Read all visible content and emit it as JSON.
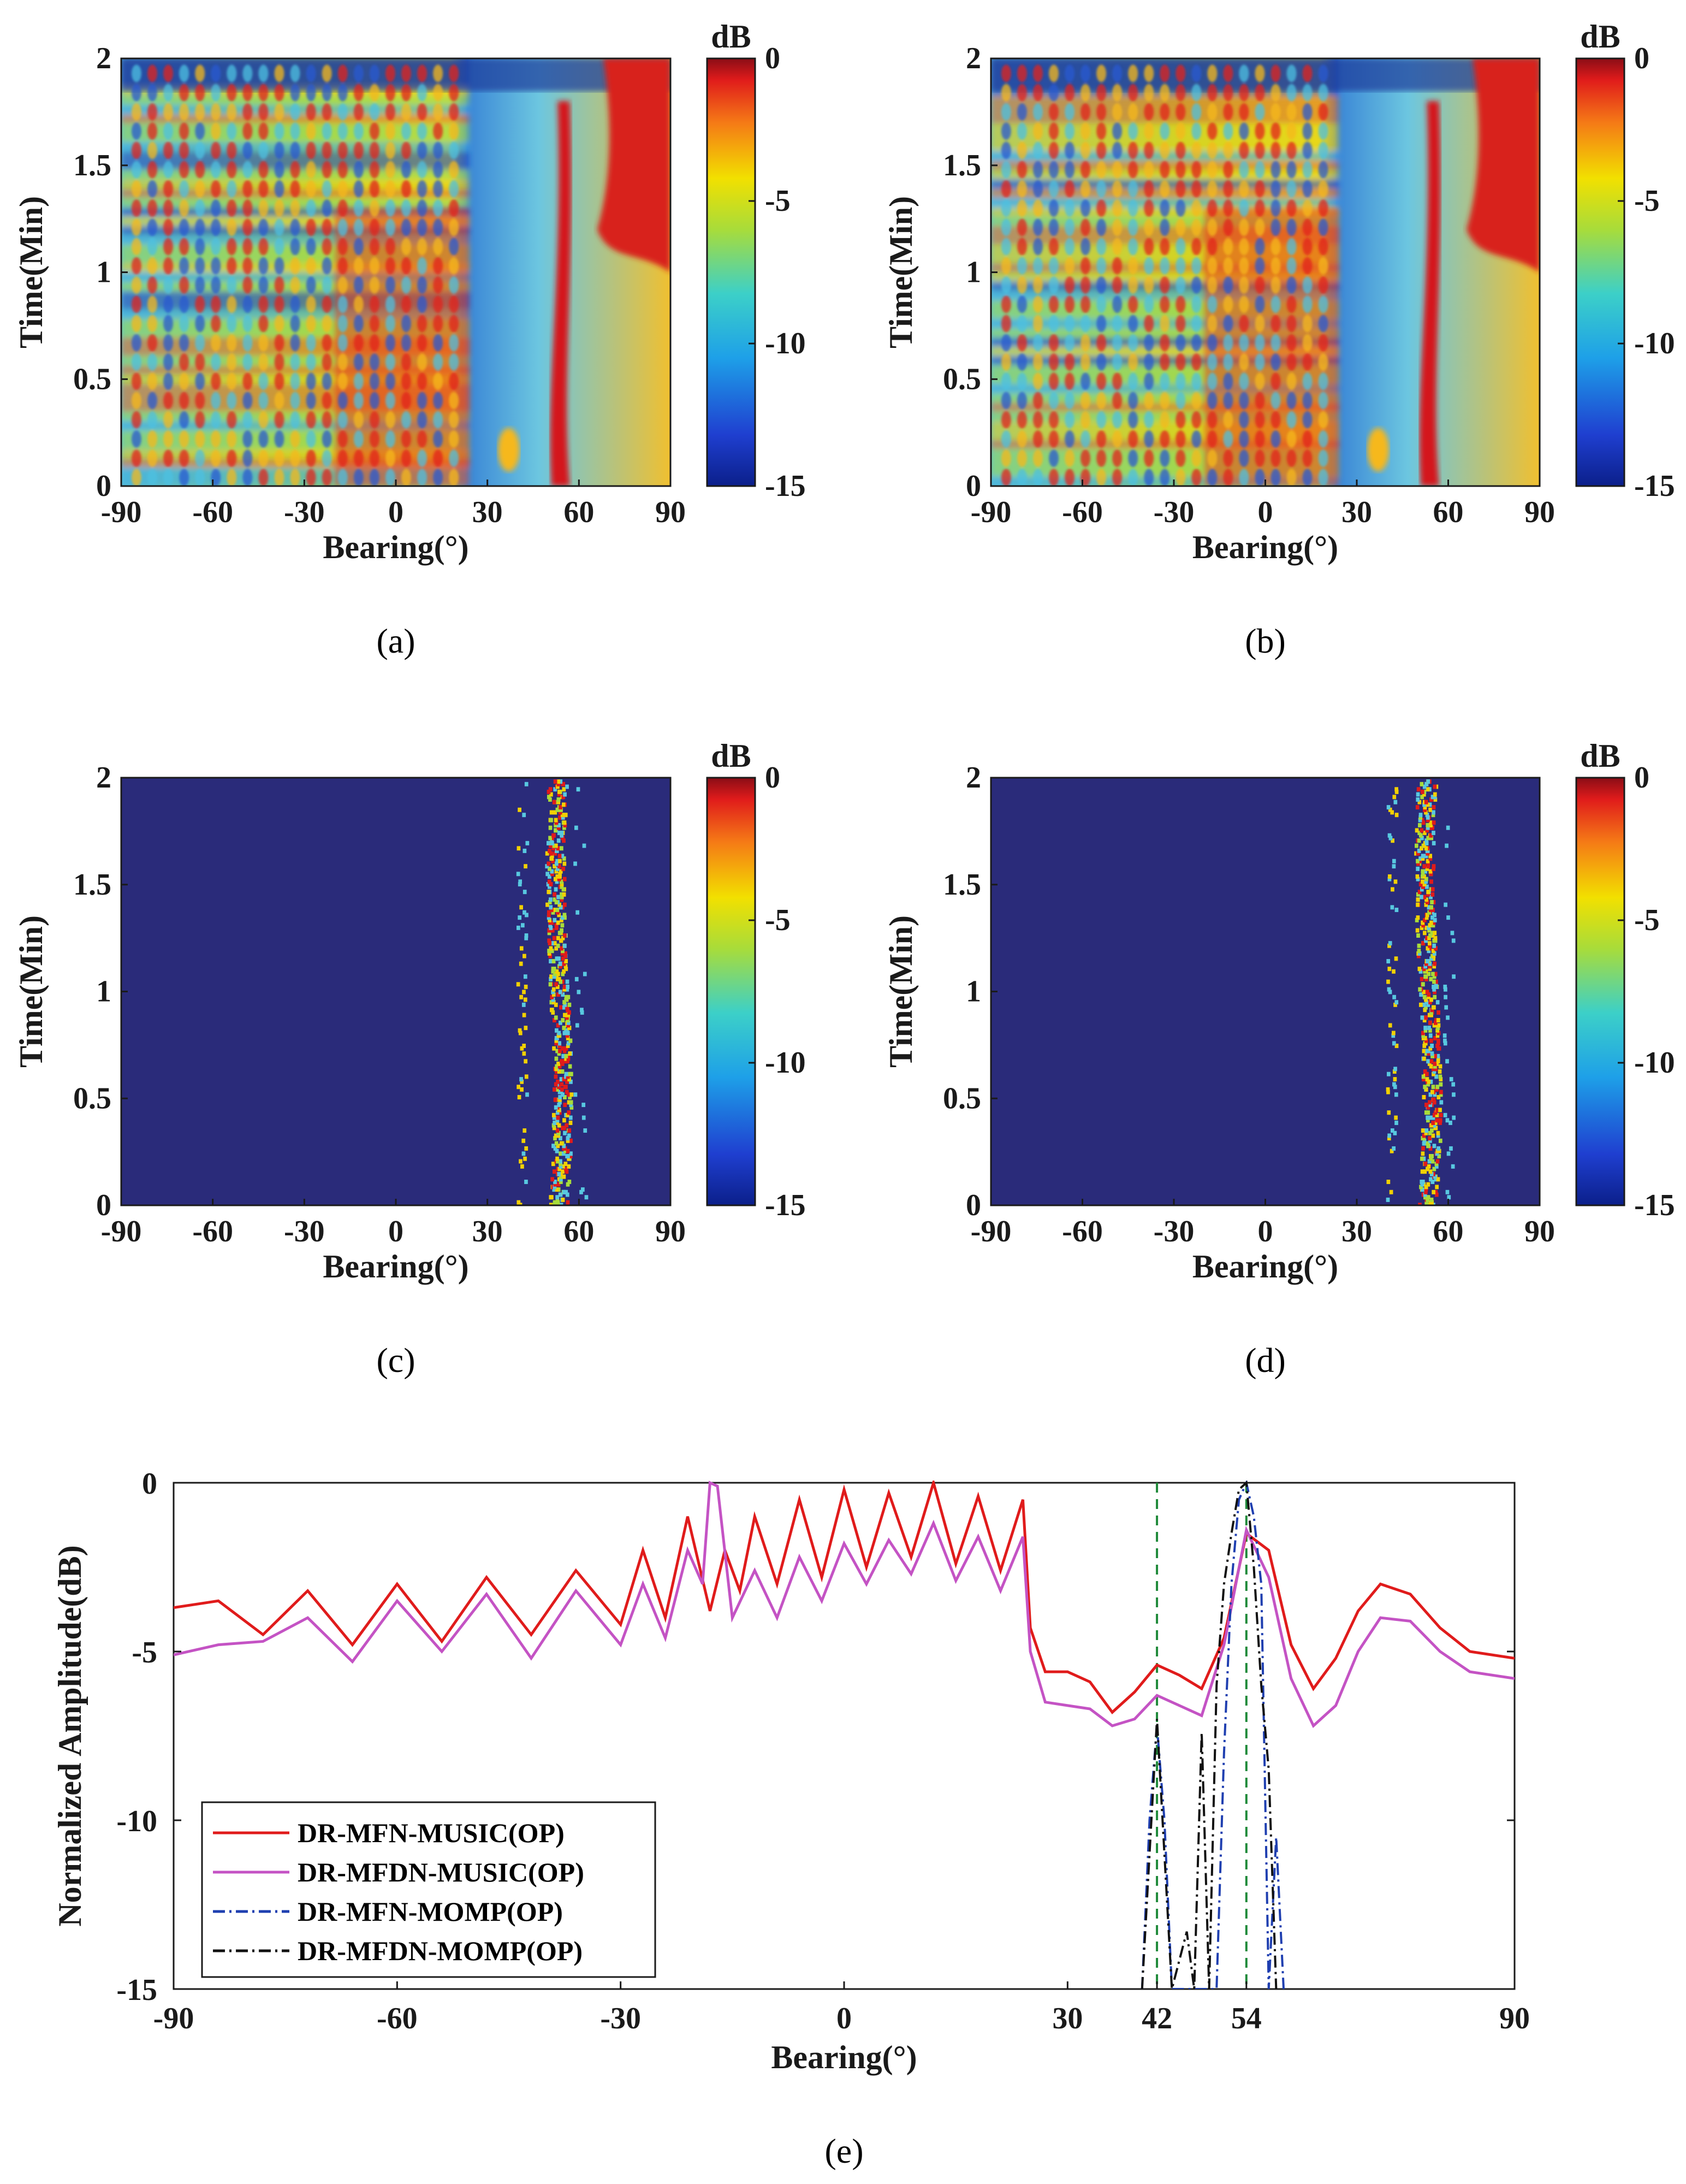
{
  "figure": {
    "colorbar_unit": "dB",
    "colorbar_ticks": [
      "0",
      "-5",
      "-10",
      "-15"
    ],
    "colorbar_range": [
      -15,
      0
    ],
    "colors": {
      "axis": "#1a1a1a",
      "floor": "#2a2b7a",
      "music_op": "#e01b1b",
      "mfdn_music_op": "#c453c4",
      "mfn_momp_op": "#1f3fb0",
      "mfdn_momp_op": "#111111",
      "marker_lines": "#1f8a3a"
    }
  },
  "panels": [
    {
      "id": "a",
      "caption": "(a)",
      "xlabel": "Bearing(°)",
      "ylabel": "Time(Min)",
      "xticks": [
        "-90",
        "-60",
        "-30",
        "0",
        "30",
        "60",
        "90"
      ],
      "yticks": [
        "0",
        "0.5",
        "1",
        "1.5",
        "2"
      ],
      "xlim": [
        -90,
        90
      ],
      "ylim": [
        0,
        2
      ],
      "variant": "wide"
    },
    {
      "id": "b",
      "caption": "(b)",
      "xlabel": "Bearing(°)",
      "ylabel": "Time(Min)",
      "xticks": [
        "-90",
        "-60",
        "-30",
        "0",
        "30",
        "60",
        "90"
      ],
      "yticks": [
        "0",
        "0.5",
        "1",
        "1.5",
        "2"
      ],
      "xlim": [
        -90,
        90
      ],
      "ylim": [
        0,
        2
      ],
      "variant": "wide"
    },
    {
      "id": "c",
      "caption": "(c)",
      "xlabel": "Bearing(°)",
      "ylabel": "Time(Min)",
      "xticks": [
        "-90",
        "-60",
        "-30",
        "0",
        "30",
        "60",
        "90"
      ],
      "yticks": [
        "0",
        "0.5",
        "1",
        "1.5",
        "2"
      ],
      "xlim": [
        -90,
        90
      ],
      "ylim": [
        0,
        2
      ],
      "variant": "sparse"
    },
    {
      "id": "d",
      "caption": "(d)",
      "xlabel": "Bearing(°)",
      "ylabel": "Time(Min)",
      "xticks": [
        "-90",
        "-60",
        "-30",
        "0",
        "30",
        "60",
        "90"
      ],
      "yticks": [
        "0",
        "0.5",
        "1",
        "1.5",
        "2"
      ],
      "xlim": [
        -90,
        90
      ],
      "ylim": [
        0,
        2
      ],
      "variant": "sparse"
    }
  ],
  "chart_data": [
    {
      "type": "heatmap",
      "panel": "a",
      "title": "",
      "xlabel": "Bearing(°)",
      "ylabel": "Time(Min)",
      "xlim": [
        -90,
        90
      ],
      "ylim": [
        0,
        2
      ],
      "zlim": [
        -15,
        0
      ],
      "colorbar_label": "dB",
      "target_tracks_deg": [
        53,
        80
      ]
    },
    {
      "type": "heatmap",
      "panel": "b",
      "title": "",
      "xlabel": "Bearing(°)",
      "ylabel": "Time(Min)",
      "xlim": [
        -90,
        90
      ],
      "ylim": [
        0,
        2
      ],
      "zlim": [
        -15,
        0
      ],
      "colorbar_label": "dB",
      "target_tracks_deg": [
        53,
        80
      ]
    },
    {
      "type": "heatmap",
      "panel": "c",
      "title": "",
      "xlabel": "Bearing(°)",
      "ylabel": "Time(Min)",
      "xlim": [
        -90,
        90
      ],
      "ylim": [
        0,
        2
      ],
      "zlim": [
        -15,
        0
      ],
      "colorbar_label": "dB",
      "target_tracks_deg": [
        41,
        53
      ]
    },
    {
      "type": "heatmap",
      "panel": "d",
      "title": "",
      "xlabel": "Bearing(°)",
      "ylabel": "Time(Min)",
      "xlim": [
        -90,
        90
      ],
      "ylim": [
        0,
        2
      ],
      "zlim": [
        -15,
        0
      ],
      "colorbar_label": "dB",
      "target_tracks_deg": [
        41,
        53
      ]
    },
    {
      "type": "line",
      "panel": "e",
      "title": "",
      "caption": "(e)",
      "xlabel": "Bearing(°)",
      "ylabel": "Normalized Amplitude(dB)",
      "xlim": [
        -90,
        90
      ],
      "ylim": [
        -15,
        0
      ],
      "xticks": [
        "-90",
        "-60",
        "-30",
        "0",
        "30",
        "42",
        "54",
        "90"
      ],
      "xtick_values": [
        -90,
        -60,
        -30,
        0,
        30,
        42,
        54,
        90
      ],
      "yticks": [
        "0",
        "-5",
        "-10",
        "-15"
      ],
      "ytick_values": [
        0,
        -5,
        -10,
        -15
      ],
      "vlines": [
        42,
        54
      ],
      "series": [
        {
          "name": "DR-MFN-MUSIC(OP)",
          "style": "solid",
          "x": [
            -90,
            -84,
            -78,
            -72,
            -66,
            -60,
            -54,
            -48,
            -42,
            -36,
            -30,
            -27,
            -24,
            -21,
            -18,
            -16,
            -14,
            -12,
            -9,
            -6,
            -3,
            0,
            3,
            6,
            9,
            12,
            15,
            18,
            21,
            24,
            25,
            27,
            30,
            33,
            36,
            39,
            42,
            45,
            48,
            51,
            54,
            57,
            60,
            63,
            66,
            69,
            72,
            76,
            80,
            84,
            90
          ],
          "y": [
            -3.7,
            -3.5,
            -4.5,
            -3.2,
            -4.8,
            -3.0,
            -4.7,
            -2.8,
            -4.5,
            -2.6,
            -4.2,
            -2.0,
            -4.0,
            -1.0,
            -3.8,
            -2.0,
            -3.2,
            -1.0,
            -3.0,
            -0.5,
            -2.8,
            -0.2,
            -2.5,
            -0.3,
            -2.2,
            0.0,
            -2.4,
            -0.4,
            -2.6,
            -0.5,
            -4.3,
            -5.6,
            -5.6,
            -5.9,
            -6.8,
            -6.2,
            -5.4,
            -5.7,
            -6.1,
            -4.6,
            -1.5,
            -2.0,
            -4.8,
            -6.1,
            -5.2,
            -3.8,
            -3.0,
            -3.3,
            -4.3,
            -5.0,
            -5.2
          ]
        },
        {
          "name": "DR-MFDN-MUSIC(OP)",
          "style": "solid",
          "x": [
            -90,
            -84,
            -78,
            -72,
            -66,
            -60,
            -54,
            -48,
            -42,
            -36,
            -30,
            -27,
            -24,
            -21,
            -19,
            -18,
            -17,
            -15,
            -12,
            -9,
            -6,
            -3,
            0,
            3,
            6,
            9,
            12,
            15,
            18,
            21,
            24,
            25,
            27,
            30,
            33,
            36,
            39,
            42,
            45,
            48,
            51,
            54,
            57,
            60,
            63,
            66,
            69,
            72,
            76,
            80,
            84,
            90
          ],
          "y": [
            -5.1,
            -4.8,
            -4.7,
            -4.0,
            -5.3,
            -3.5,
            -5.0,
            -3.3,
            -5.2,
            -3.2,
            -4.8,
            -3.0,
            -4.6,
            -2.0,
            -3.0,
            0.0,
            -0.1,
            -4.0,
            -2.6,
            -4.0,
            -2.2,
            -3.5,
            -1.8,
            -3.0,
            -1.7,
            -2.7,
            -1.2,
            -2.9,
            -1.6,
            -3.2,
            -1.6,
            -5.0,
            -6.5,
            -6.6,
            -6.7,
            -7.2,
            -7.0,
            -6.3,
            -6.6,
            -6.9,
            -4.8,
            -1.4,
            -2.8,
            -5.8,
            -7.2,
            -6.6,
            -5.0,
            -4.0,
            -4.1,
            -5.0,
            -5.6,
            -5.8
          ]
        },
        {
          "name": "DR-MFN-MOMP(OP)",
          "style": "dash-dot",
          "x": [
            40,
            41,
            42,
            43,
            44,
            50,
            51,
            52,
            53,
            54,
            55,
            56,
            57,
            58,
            59
          ],
          "y": [
            -15,
            -10,
            -7.2,
            -10,
            -15,
            -15,
            -8.0,
            -3.0,
            -0.5,
            0.0,
            -1.0,
            -3.0,
            -15,
            -10.5,
            -15
          ]
        },
        {
          "name": "DR-MFDN-MOMP(OP)",
          "style": "dash-dot",
          "x": [
            40,
            41,
            42,
            43,
            44,
            46,
            47,
            48,
            49,
            50,
            51,
            52,
            53,
            54,
            55,
            56,
            57,
            58
          ],
          "y": [
            -15,
            -11,
            -7.0,
            -11,
            -15,
            -13.3,
            -15,
            -7.4,
            -15,
            -6.0,
            -3.0,
            -1.5,
            -0.2,
            0.0,
            -2.5,
            -6.0,
            -8.5,
            -15
          ]
        }
      ]
    }
  ]
}
